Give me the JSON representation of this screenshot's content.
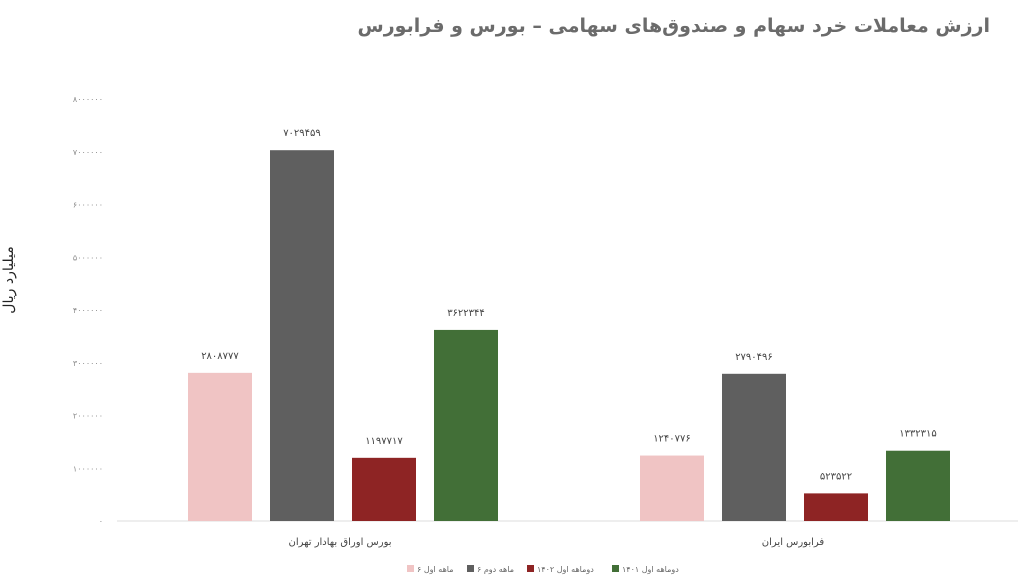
{
  "chart_data": {
    "type": "bar",
    "title": "ارزش معاملات خرد سهام و صندوق‌های سهامی – بورس و فرابورس",
    "ylabel": "میلیارد ریال",
    "ylim": [
      0,
      8000000
    ],
    "yticks": [
      0,
      1000000,
      2000000,
      3000000,
      4000000,
      5000000,
      6000000,
      7000000,
      8000000
    ],
    "ytick_labels": [
      "۰",
      "۱۰۰۰۰۰۰",
      "۲۰۰۰۰۰۰",
      "۳۰۰۰۰۰۰",
      "۴۰۰۰۰۰۰",
      "۵۰۰۰۰۰۰",
      "۶۰۰۰۰۰۰",
      "۷۰۰۰۰۰۰",
      "۸۰۰۰۰۰۰"
    ],
    "grid": false,
    "legend_position": "bottom",
    "categories": [
      "بورس اوراق بهادار تهران",
      "فرابورس ایران"
    ],
    "series": [
      {
        "name": "۶ ماهه اول",
        "color": "#f0c4c4",
        "values": [
          2808777,
          1240776
        ],
        "labels": [
          "۲۸۰۸۷۷۷",
          "۱۲۴۰۷۷۶"
        ]
      },
      {
        "name": "۶ ماهه دوم",
        "color": "#5f5f5f",
        "values": [
          7029459,
          2790496
        ],
        "labels": [
          "۷۰۲۹۴۵۹",
          "۲۷۹۰۴۹۶"
        ]
      },
      {
        "name": "دوماهه اول ۱۴۰۲",
        "color": "#8e2424",
        "values": [
          1197717,
          523522
        ],
        "labels": [
          "۱۱۹۷۷۱۷",
          "۵۲۳۵۲۲"
        ]
      },
      {
        "name": "دوماهه اول ۱۴۰۱",
        "color": "#426f37",
        "values": [
          3622344,
          1332315
        ],
        "labels": [
          "۳۶۲۲۳۴۴",
          "۱۳۳۲۳۱۵"
        ]
      }
    ]
  }
}
